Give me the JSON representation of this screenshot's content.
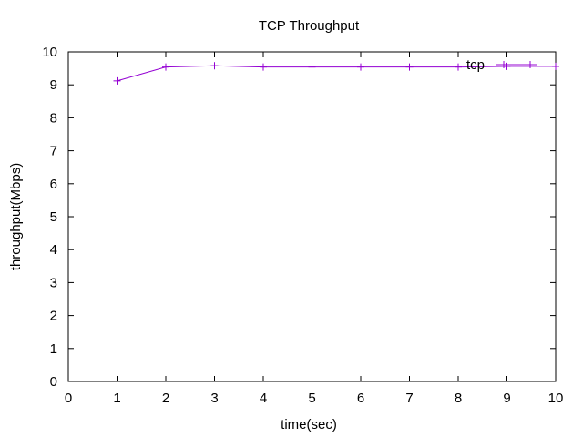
{
  "chart_data": {
    "type": "line",
    "title": "TCP Throughput",
    "xlabel": "time(sec)",
    "ylabel": "throughput(Mbps)",
    "xlim": [
      0,
      10
    ],
    "ylim": [
      0,
      10
    ],
    "xticks": [
      "0",
      "1",
      "2",
      "3",
      "4",
      "5",
      "6",
      "7",
      "8",
      "9",
      "10"
    ],
    "yticks": [
      "0",
      "1",
      "2",
      "3",
      "4",
      "5",
      "6",
      "7",
      "8",
      "9",
      "10"
    ],
    "grid": false,
    "legend_position": "top-right",
    "series": [
      {
        "name": "tcp",
        "color": "#9400d3",
        "marker": "plus",
        "x": [
          1,
          2,
          3,
          4,
          5,
          6,
          7,
          8,
          9,
          10
        ],
        "y": [
          9.12,
          9.54,
          9.58,
          9.54,
          9.54,
          9.54,
          9.54,
          9.54,
          9.56,
          9.56
        ]
      }
    ]
  }
}
